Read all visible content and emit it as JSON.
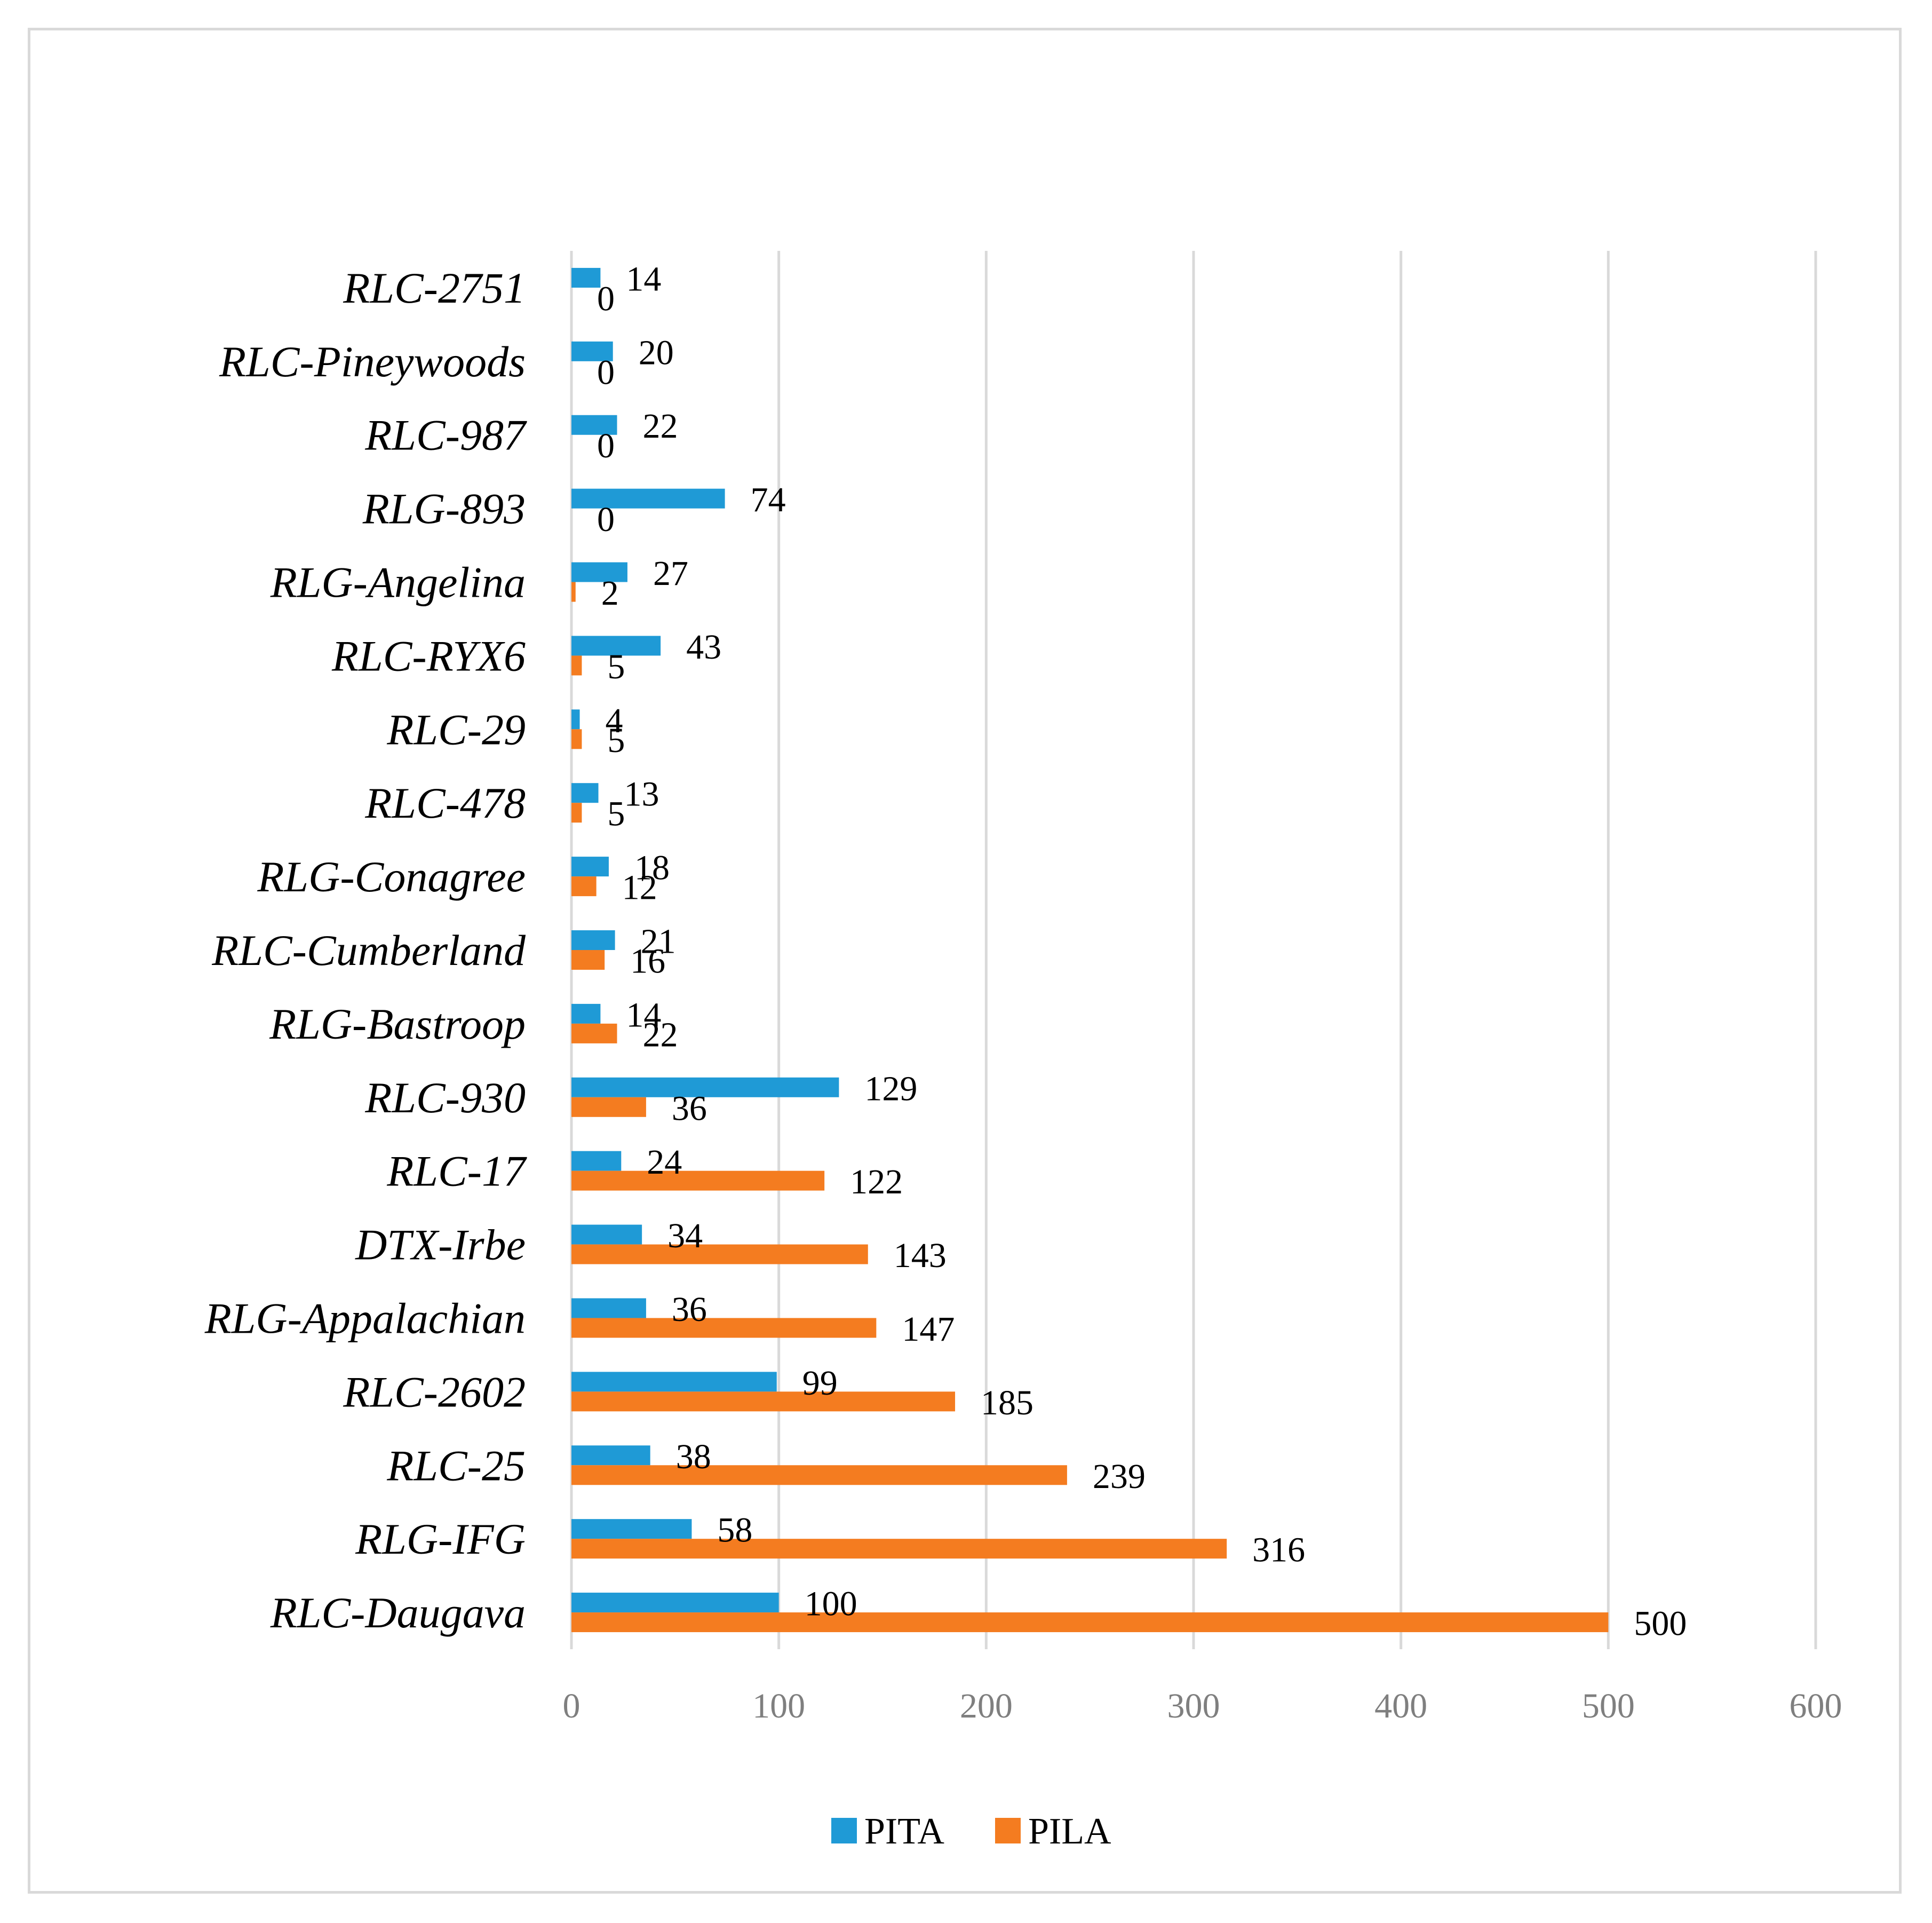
{
  "chart_data": {
    "type": "bar",
    "orientation": "horizontal",
    "categories": [
      "RLC-Daugava",
      "RLG-IFG",
      "RLC-25",
      "RLC-2602",
      "RLG-Appalachian",
      "DTX-Irbe",
      "RLC-17",
      "RLC-930",
      "RLG-Bastroop",
      "RLC-Cumberland",
      "RLG-Conagree",
      "RLC-478",
      "RLC-29",
      "RLC-RYX6",
      "RLG-Angelina",
      "RLG-893",
      "RLC-987",
      "RLC-Pineywoods",
      "RLC-2751"
    ],
    "series": [
      {
        "name": "PITA",
        "color": "#1f9ad6",
        "values": [
          100,
          58,
          38,
          99,
          36,
          34,
          24,
          129,
          14,
          21,
          18,
          13,
          4,
          43,
          27,
          74,
          22,
          20,
          14
        ]
      },
      {
        "name": "PILA",
        "color": "#f47c20",
        "values": [
          500,
          316,
          239,
          185,
          147,
          143,
          122,
          36,
          22,
          16,
          12,
          5,
          5,
          5,
          2,
          0,
          0,
          0,
          0
        ]
      }
    ],
    "xlim": [
      0,
      600
    ],
    "xticks": [
      "0",
      "100",
      "200",
      "300",
      "400",
      "500",
      "600"
    ],
    "grid": true,
    "legend": "bottom",
    "data_labels": true,
    "title": "",
    "xlabel": "",
    "ylabel": ""
  }
}
